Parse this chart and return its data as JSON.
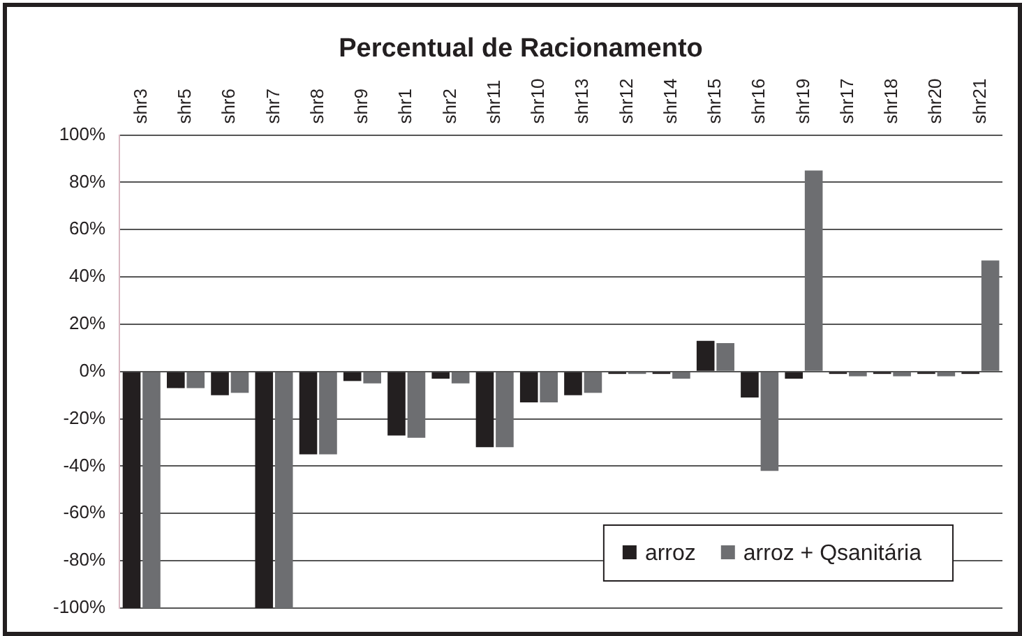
{
  "chart_data": {
    "type": "bar",
    "title": "Percentual de Racionamento",
    "categories": [
      "shr3",
      "shr5",
      "shr6",
      "shr7",
      "shr8",
      "shr9",
      "shr1",
      "shr2",
      "shr11",
      "shr10",
      "shr13",
      "shr12",
      "shr14",
      "shr15",
      "shr16",
      "shr19",
      "shr17",
      "shr18",
      "shr20",
      "shr21"
    ],
    "series": [
      {
        "name": "arroz",
        "color": "#231f20",
        "values": [
          -100,
          -7,
          -10,
          -100,
          -35,
          -4,
          -27,
          -3,
          -32,
          -13,
          -10,
          -1,
          -1,
          13,
          -11,
          -3,
          -1,
          -1,
          -1,
          -1
        ]
      },
      {
        "name": "arroz + Qsanitária",
        "color": "#6d6e71",
        "values": [
          -100,
          -7,
          -9,
          -100,
          -35,
          -5,
          -28,
          -5,
          -32,
          -13,
          -9,
          -1,
          -3,
          12,
          -42,
          85,
          -2,
          -2,
          -2,
          47
        ]
      }
    ],
    "ylim": [
      -100,
      100
    ],
    "yticks": [
      {
        "value": -100,
        "label": "-100%"
      },
      {
        "value": -80,
        "label": "-80%"
      },
      {
        "value": -60,
        "label": "-60%"
      },
      {
        "value": -40,
        "label": "-40%"
      },
      {
        "value": -20,
        "label": "-20%"
      },
      {
        "value": 0,
        "label": "0%"
      },
      {
        "value": 20,
        "label": "20%"
      },
      {
        "value": 40,
        "label": "40%"
      },
      {
        "value": 60,
        "label": "60%"
      },
      {
        "value": 80,
        "label": "80%"
      },
      {
        "value": 100,
        "label": "100%"
      }
    ],
    "grid": "y",
    "legend": "bottom right"
  }
}
